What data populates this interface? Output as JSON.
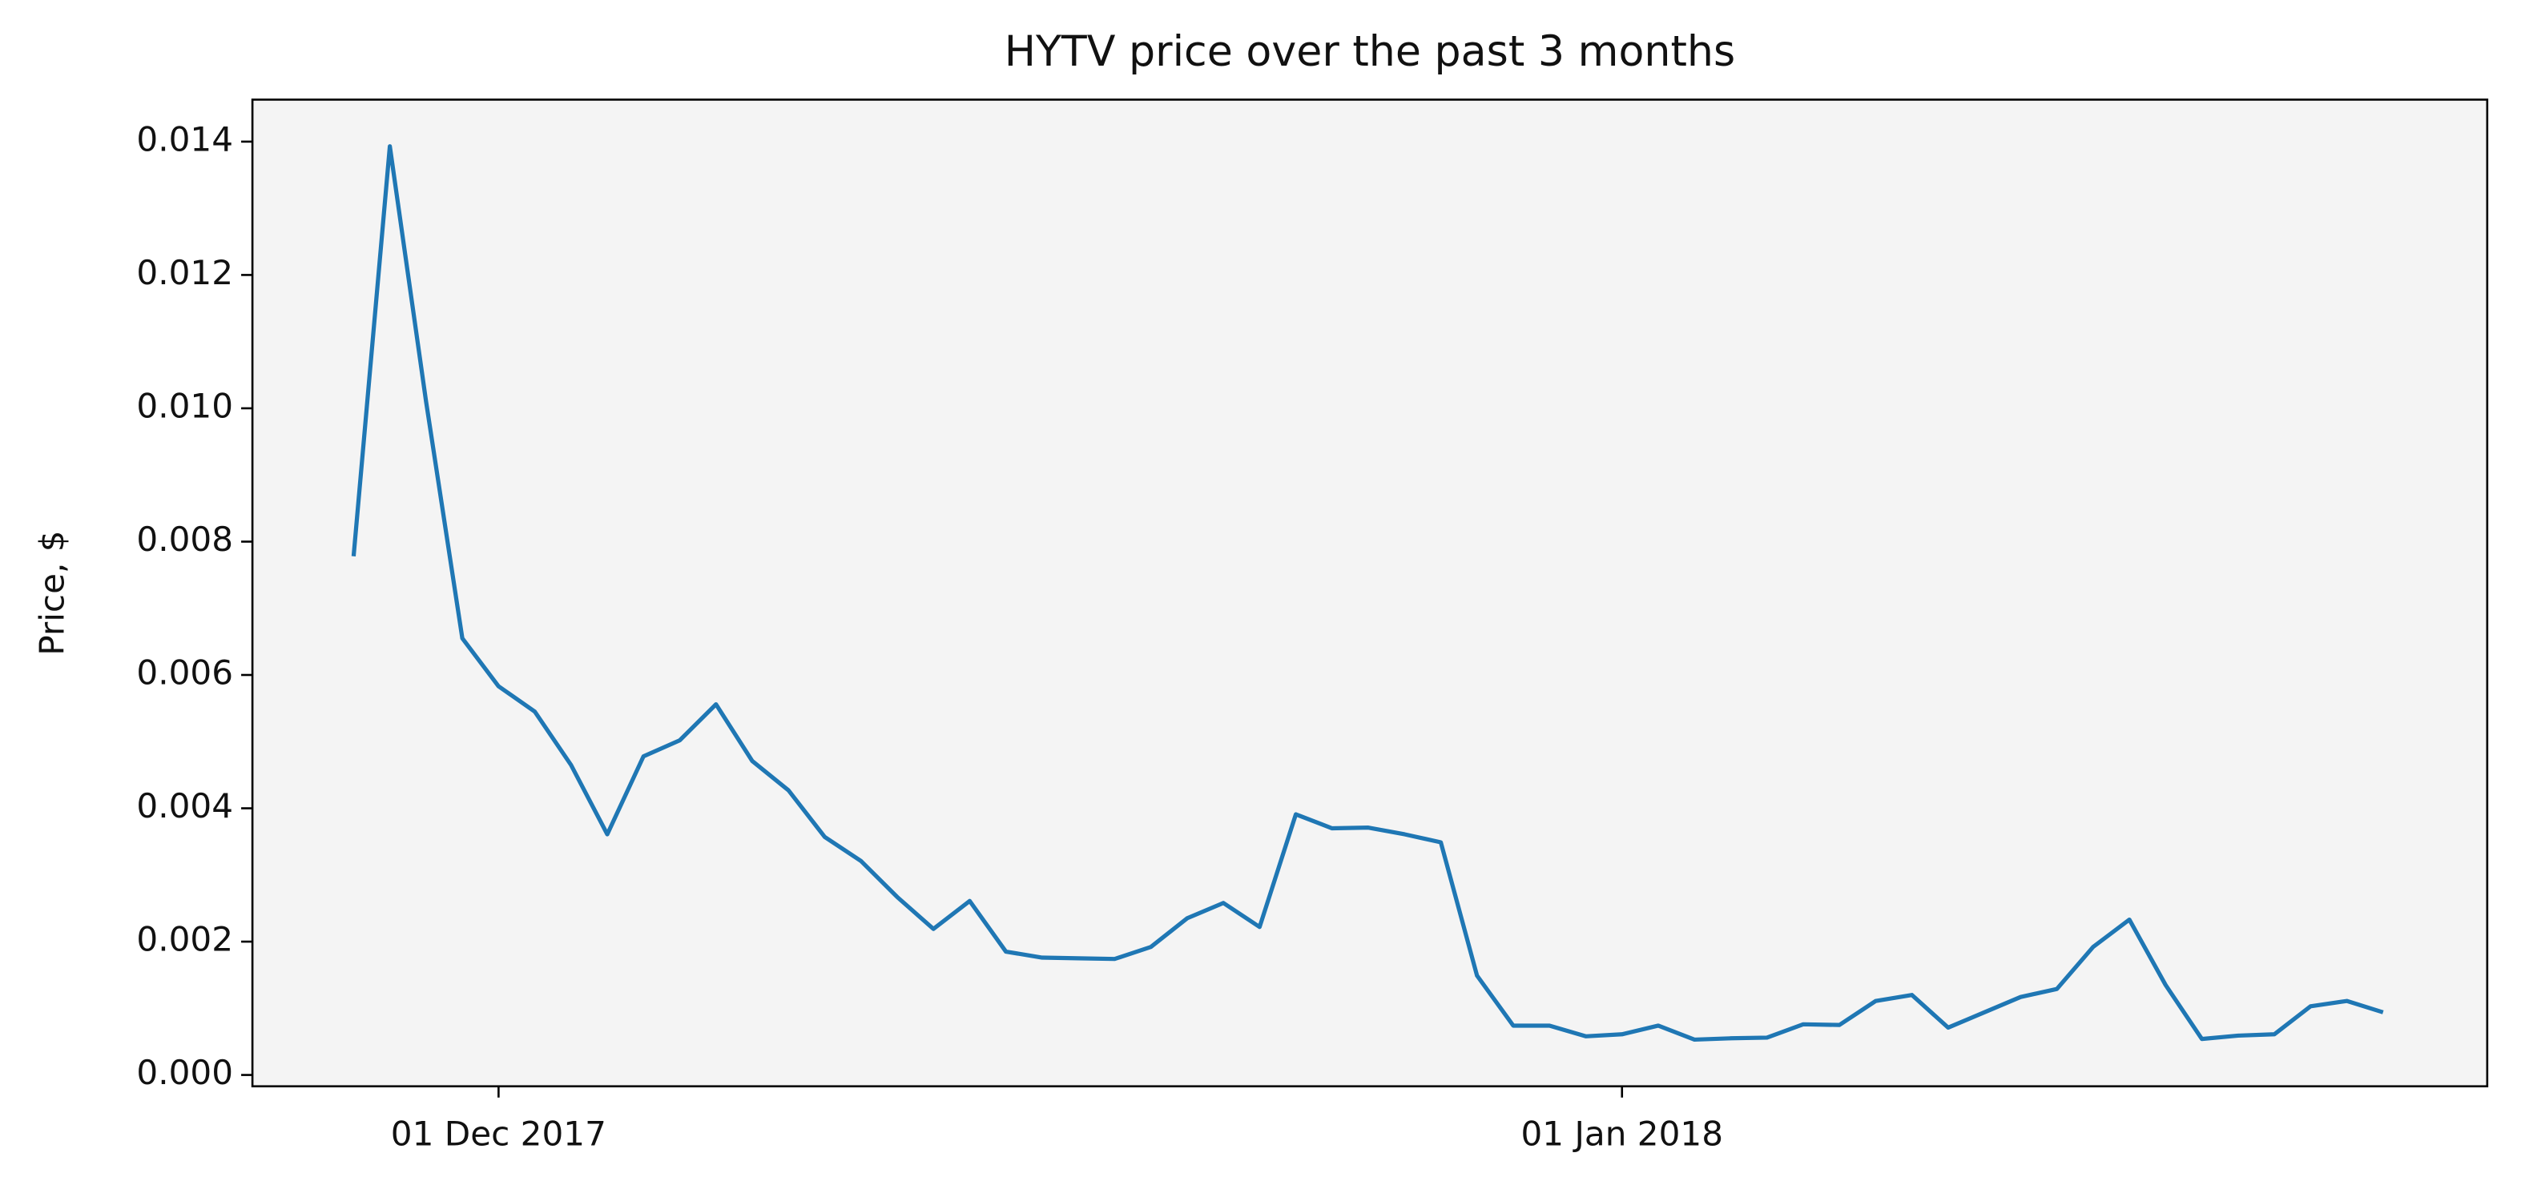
{
  "chart_data": {
    "type": "line",
    "title": "HYTV price over the past 3 months",
    "y_label": "Price, $",
    "x": [
      "2017-11-27",
      "2017-11-28",
      "2017-11-29",
      "2017-11-30",
      "2017-12-01",
      "2017-12-02",
      "2017-12-03",
      "2017-12-04",
      "2017-12-05",
      "2017-12-06",
      "2017-12-07",
      "2017-12-08",
      "2017-12-09",
      "2017-12-10",
      "2017-12-11",
      "2017-12-12",
      "2017-12-13",
      "2017-12-14",
      "2017-12-15",
      "2017-12-16",
      "2017-12-17",
      "2017-12-18",
      "2017-12-19",
      "2017-12-20",
      "2017-12-21",
      "2017-12-22",
      "2017-12-23",
      "2017-12-24",
      "2017-12-25",
      "2017-12-26",
      "2017-12-27",
      "2017-12-28",
      "2017-12-29",
      "2017-12-30",
      "2017-12-31",
      "2018-01-01",
      "2018-01-02",
      "2018-01-03",
      "2018-01-04",
      "2018-01-05",
      "2018-01-06",
      "2018-01-07",
      "2018-01-08",
      "2018-01-09",
      "2018-01-10",
      "2018-01-11",
      "2018-01-12",
      "2018-01-13",
      "2018-01-14",
      "2018-01-15",
      "2018-01-16",
      "2018-01-17",
      "2018-01-18",
      "2018-01-19",
      "2018-01-20",
      "2018-01-21",
      "2018-01-22"
    ],
    "series": [
      {
        "color": "#1f77b4",
        "values": [
          0.00778,
          0.01393,
          0.0101,
          0.00655,
          0.00583,
          0.00545,
          0.00465,
          0.00361,
          0.00478,
          0.00502,
          0.00556,
          0.00471,
          0.00427,
          0.00357,
          0.00321,
          0.00267,
          0.00219,
          0.00261,
          0.00185,
          0.00176,
          0.00175,
          0.00174,
          0.00192,
          0.00235,
          0.00258,
          0.00222,
          0.00391,
          0.0037,
          0.00371,
          0.00361,
          0.00349,
          0.00149,
          0.00074,
          0.00074,
          0.00058,
          0.00061,
          0.00074,
          0.00053,
          0.00055,
          0.00056,
          0.00076,
          0.00075,
          0.00111,
          0.0012,
          0.00071,
          0.00094,
          0.00117,
          0.00129,
          0.00192,
          0.00233,
          0.00135,
          0.00054,
          0.00059,
          0.00061,
          0.00103,
          0.00111,
          0.00094
        ]
      }
    ],
    "xlim": [
      "2017-11-24T05:00:00Z",
      "2018-01-24T21:00:00Z"
    ],
    "xticks": [
      {
        "value": "2017-12-01",
        "label": "01 Dec 2017"
      },
      {
        "value": "2018-01-01",
        "label": "01 Jan 2018"
      }
    ],
    "ylim": [
      -0.00017,
      0.01463
    ],
    "yticks": [
      {
        "value": 0,
        "label": "0.000"
      },
      0.002,
      0.004,
      0.006,
      0.008,
      {
        "value": 0.01,
        "label": "0.010"
      },
      0.012,
      0.014
    ],
    "background": "#f4f4f4"
  }
}
